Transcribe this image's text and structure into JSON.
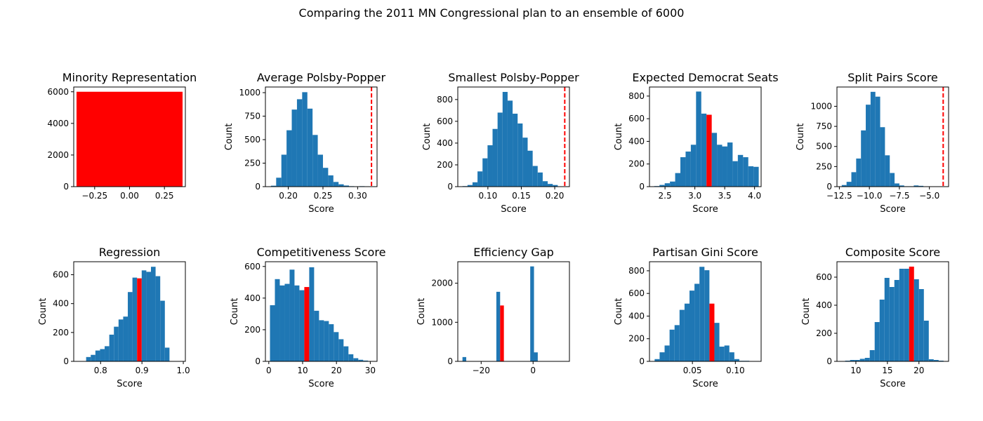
{
  "suptitle": "Comparing the 2011 MN Congressional plan to an ensemble of 6000",
  "colors": {
    "hist": "#1f77b4",
    "highlight": "#ff0000",
    "plan_line": "#ff0000"
  },
  "chart_data": [
    {
      "type": "bar",
      "title": "Minority Representation",
      "xlabel": "",
      "ylabel": "",
      "xlim": [
        -0.4,
        0.4
      ],
      "ylim": [
        0,
        6300
      ],
      "xticks": [
        -0.25,
        0.0,
        0.25
      ],
      "xtick_labels": [
        "−0.25",
        "0.00",
        "0.25"
      ],
      "yticks": [
        0,
        2000,
        4000,
        6000
      ],
      "ytick_labels": [
        "0",
        "2000",
        "4000",
        "6000"
      ],
      "bins": [
        {
          "x0": -0.38,
          "x1": 0.38,
          "count": 6000
        }
      ],
      "highlight_bin": 0
    },
    {
      "type": "histogram",
      "title": "Average Polsby-Popper",
      "xlabel": "Score",
      "ylabel": "Count",
      "xlim": [
        0.167,
        0.328
      ],
      "ylim": [
        0,
        1060
      ],
      "xticks": [
        0.2,
        0.25,
        0.3
      ],
      "xtick_labels": [
        "0.20",
        "0.25",
        "0.30"
      ],
      "yticks": [
        0,
        250,
        500,
        750,
        1000
      ],
      "ytick_labels": [
        "0",
        "250",
        "500",
        "750",
        "1000"
      ],
      "bin_start": 0.175,
      "bin_width": 0.0075,
      "counts": [
        10,
        95,
        340,
        600,
        820,
        930,
        1005,
        830,
        550,
        340,
        200,
        120,
        50,
        25,
        12,
        5,
        3,
        5
      ],
      "plan_line": 0.32
    },
    {
      "type": "histogram",
      "title": "Smallest Polsby-Popper",
      "xlabel": "Score",
      "ylabel": "Count",
      "xlim": [
        0.055,
        0.222
      ],
      "ylim": [
        0,
        915
      ],
      "xticks": [
        0.1,
        0.15,
        0.2
      ],
      "xtick_labels": [
        "0.10",
        "0.15",
        "0.20"
      ],
      "yticks": [
        0,
        200,
        400,
        600,
        800
      ],
      "ytick_labels": [
        "0",
        "200",
        "400",
        "600",
        "800"
      ],
      "bin_start": 0.062,
      "bin_width": 0.0075,
      "counts": [
        5,
        15,
        40,
        140,
        260,
        380,
        530,
        680,
        870,
        790,
        670,
        580,
        450,
        330,
        190,
        130,
        50,
        25,
        15
      ],
      "plan_line": 0.215
    },
    {
      "type": "histogram",
      "title": "Expected Democrat Seats",
      "xlabel": "Score",
      "ylabel": "Count",
      "xlim": [
        2.24,
        4.11
      ],
      "ylim": [
        0,
        880
      ],
      "xticks": [
        2.5,
        3.0,
        3.5,
        4.0
      ],
      "xtick_labels": [
        "2.5",
        "3.0",
        "3.5",
        "4.0"
      ],
      "yticks": [
        0,
        200,
        400,
        600,
        800
      ],
      "ytick_labels": [
        "0",
        "200",
        "400",
        "600",
        "800"
      ],
      "bin_start": 2.32,
      "bin_width": 0.0875,
      "counts": [
        5,
        15,
        30,
        45,
        120,
        260,
        310,
        370,
        840,
        645,
        635,
        475,
        370,
        355,
        390,
        225,
        280,
        260,
        180,
        175
      ],
      "highlight_bin": 10
    },
    {
      "type": "histogram",
      "title": "Split Pairs Score",
      "xlabel": "Score",
      "ylabel": "Count",
      "xlim": [
        -12.7,
        -3.4
      ],
      "ylim": [
        0,
        1240
      ],
      "xticks": [
        -12.5,
        -10.0,
        -7.5,
        -5.0
      ],
      "xtick_labels": [
        "−12.5",
        "−10.0",
        "−7.5",
        "−5.0"
      ],
      "yticks": [
        0,
        250,
        500,
        750,
        1000
      ],
      "ytick_labels": [
        "0",
        "250",
        "500",
        "750",
        "1000"
      ],
      "bin_start": -12.3,
      "bin_width": 0.4,
      "counts": [
        20,
        60,
        180,
        350,
        700,
        1020,
        1180,
        1120,
        740,
        390,
        170,
        40,
        15,
        5,
        5,
        15,
        10
      ],
      "plan_line": -3.85
    },
    {
      "type": "histogram",
      "title": "Regression",
      "xlabel": "Score",
      "ylabel": "Count",
      "xlim": [
        0.735,
        1.005
      ],
      "ylim": [
        0,
        690
      ],
      "xticks": [
        0.8,
        0.9,
        1.0
      ],
      "xtick_labels": [
        "0.8",
        "0.9",
        "1.0"
      ],
      "yticks": [
        0,
        200,
        400,
        600
      ],
      "ytick_labels": [
        "0",
        "200",
        "400",
        "600"
      ],
      "bin_start": 0.765,
      "bin_width": 0.0112,
      "counts": [
        30,
        45,
        75,
        85,
        105,
        185,
        240,
        290,
        310,
        480,
        580,
        575,
        630,
        620,
        655,
        590,
        420,
        95
      ],
      "highlight_bin": 11
    },
    {
      "type": "histogram",
      "title": "Competitiveness Score",
      "xlabel": "Score",
      "ylabel": "Count",
      "xlim": [
        -1,
        32
      ],
      "ylim": [
        0,
        630
      ],
      "xticks": [
        0,
        10,
        20,
        30
      ],
      "xtick_labels": [
        "0",
        "10",
        "20",
        "30"
      ],
      "yticks": [
        0,
        200,
        400,
        600
      ],
      "ytick_labels": [
        "0",
        "200",
        "400",
        "600"
      ],
      "bin_start": 0.35,
      "bin_width": 1.45,
      "counts": [
        355,
        520,
        480,
        490,
        580,
        480,
        450,
        470,
        595,
        320,
        260,
        255,
        235,
        185,
        140,
        95,
        45,
        20,
        10,
        5
      ],
      "highlight_bin": 7
    },
    {
      "type": "histogram",
      "title": "Efficiency Gap",
      "xlabel": "",
      "ylabel": "Count",
      "xlim": [
        -29,
        14
      ],
      "ylim": [
        0,
        2550
      ],
      "xticks": [
        -20,
        0
      ],
      "xtick_labels": [
        "−20",
        "0"
      ],
      "yticks": [
        0,
        1000,
        2000
      ],
      "ytick_labels": [
        "0",
        "1000",
        "2000"
      ],
      "bin_start": -27.2,
      "bin_width": 1.45,
      "counts": [
        110,
        0,
        0,
        0,
        0,
        0,
        0,
        0,
        0,
        1780,
        1430,
        0,
        0,
        0,
        0,
        0,
        0,
        0,
        2430,
        230
      ],
      "highlight_bin": 10
    },
    {
      "type": "histogram",
      "title": "Partisan Gini Score",
      "xlabel": "Score",
      "ylabel": "Count",
      "xlim": [
        0.0,
        0.13
      ],
      "ylim": [
        0,
        880
      ],
      "xticks": [
        0.05,
        0.1
      ],
      "xtick_labels": [
        "0.05",
        "0.10"
      ],
      "yticks": [
        0,
        200,
        400,
        600,
        800
      ],
      "ytick_labels": [
        "0",
        "200",
        "400",
        "600",
        "800"
      ],
      "bin_start": 0.006,
      "bin_width": 0.0058,
      "counts": [
        20,
        80,
        140,
        280,
        320,
        455,
        510,
        625,
        685,
        835,
        805,
        510,
        340,
        130,
        140,
        80,
        20,
        5,
        5
      ],
      "highlight_bin": 11
    },
    {
      "type": "histogram",
      "title": "Composite Score",
      "xlabel": "Score",
      "ylabel": "Count",
      "xlim": [
        7.0,
        24.7
      ],
      "ylim": [
        0,
        710
      ],
      "xticks": [
        10,
        15,
        20
      ],
      "xtick_labels": [
        "10",
        "15",
        "20"
      ],
      "yticks": [
        0,
        200,
        400,
        600
      ],
      "ytick_labels": [
        "0",
        "200",
        "400",
        "600"
      ],
      "bin_start": 8.3,
      "bin_width": 0.78,
      "counts": [
        5,
        10,
        10,
        18,
        25,
        80,
        280,
        440,
        595,
        530,
        580,
        660,
        660,
        675,
        585,
        515,
        290,
        15,
        10,
        5
      ],
      "highlight_bin": 13
    }
  ]
}
